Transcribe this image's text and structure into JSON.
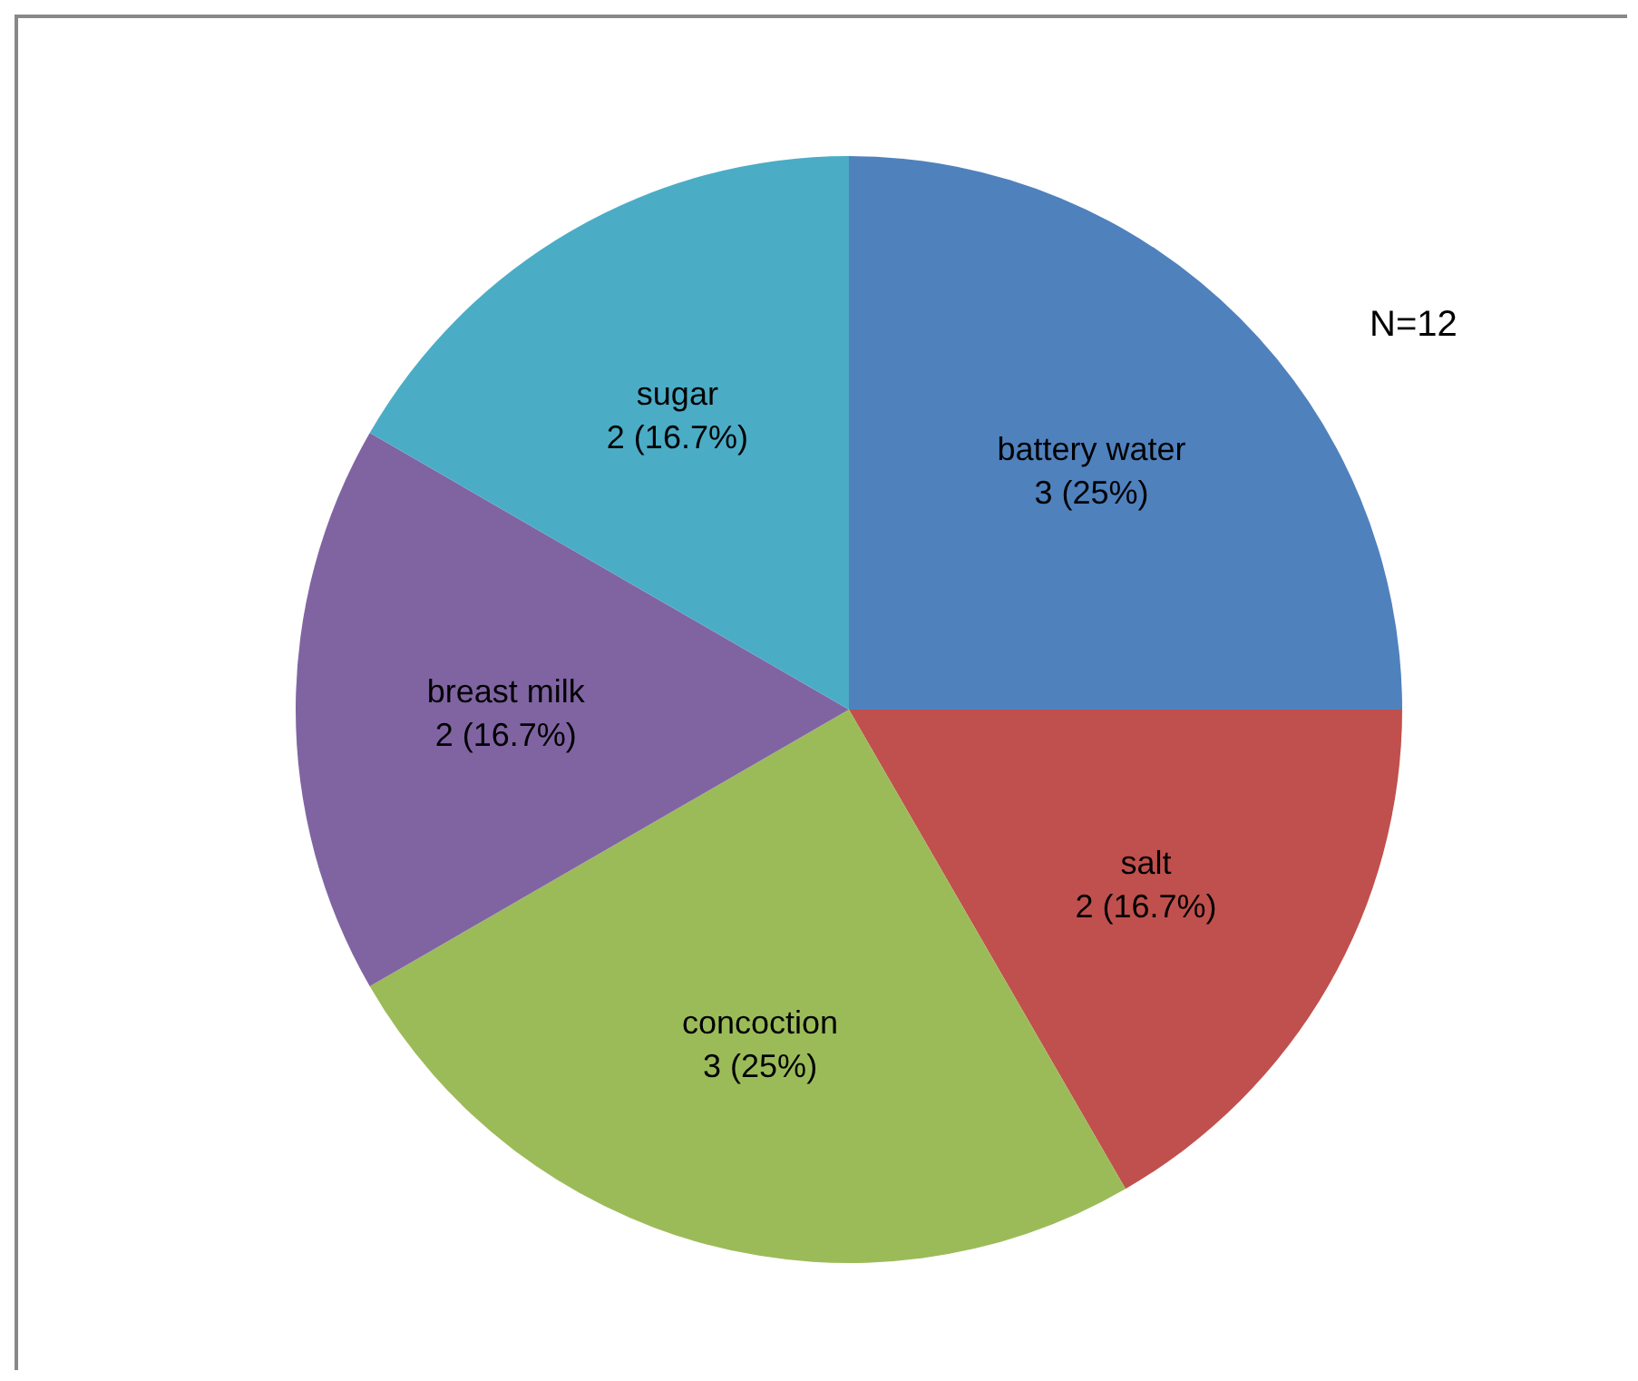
{
  "chart_data": {
    "type": "pie",
    "categories": [
      "battery water",
      "salt",
      "concoction",
      "breast milk",
      "sugar"
    ],
    "values": [
      3,
      2,
      3,
      2,
      2
    ],
    "colors": [
      "#4f81bd",
      "#c0504d",
      "#9bbb59",
      "#8064a2",
      "#4bacc6"
    ],
    "value_labels": [
      "3 (25%)",
      "2 (16.7%)",
      "3 (25%)",
      "2 (16.7%)",
      "2 (16.7%)"
    ],
    "annotations": [
      "N=12"
    ],
    "legend": false
  }
}
